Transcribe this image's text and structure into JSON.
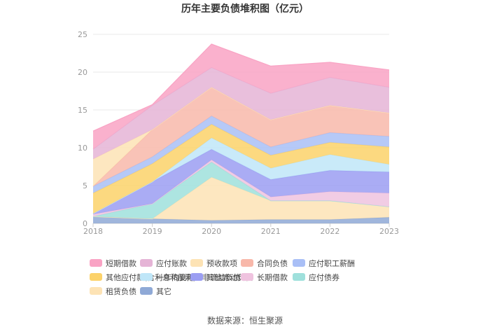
{
  "chart_data": {
    "type": "area",
    "stacked": true,
    "title": "历年主要负债堆积图（亿元）",
    "x": [
      "2018",
      "2019",
      "2020",
      "2021",
      "2022",
      "2023"
    ],
    "ylim": [
      0,
      25
    ],
    "yticks": [
      "0",
      "5",
      "10",
      "15",
      "20",
      "25"
    ],
    "grid": true,
    "legend_position": "bottom",
    "series": [
      {
        "name": "其它",
        "color": "#8fa9d6",
        "values": [
          0.9,
          0.6,
          0.4,
          0.5,
          0.5,
          0.8
        ]
      },
      {
        "name": "租赁负债",
        "color": "#fde3b5",
        "values": [
          0.0,
          0.0,
          5.7,
          2.5,
          2.5,
          1.4
        ]
      },
      {
        "name": "应付债券",
        "color": "#9fe0dc",
        "values": [
          0.0,
          2.0,
          2.0,
          0.0,
          0.0,
          0.0
        ]
      },
      {
        "name": "长期借款",
        "color": "#efc3df",
        "values": [
          0.3,
          0.0,
          0.3,
          0.5,
          1.2,
          1.8
        ]
      },
      {
        "name": "其他流动负债",
        "color": "#9b9ef2",
        "values": [
          0.1,
          2.9,
          1.4,
          2.3,
          2.8,
          2.8
        ]
      },
      {
        "name": "一年内到期的非流动负债",
        "color": "#bfe6f8",
        "values": [
          0.0,
          0.0,
          1.5,
          1.5,
          2.1,
          1.0
        ]
      },
      {
        "name": "其他应付款(含利息和股利)",
        "color": "#fcd26a",
        "values": [
          2.7,
          2.4,
          1.8,
          1.7,
          1.6,
          2.3
        ]
      },
      {
        "name": "应付职工薪酬",
        "color": "#a9bff6",
        "values": [
          0.9,
          0.9,
          1.1,
          1.1,
          1.3,
          1.4
        ]
      },
      {
        "name": "合同负债",
        "color": "#f8b8aa",
        "values": [
          0.0,
          3.6,
          3.8,
          3.6,
          3.6,
          3.1
        ]
      },
      {
        "name": "预收款项",
        "color": "#fde3b5",
        "values": [
          3.6,
          0.0,
          0.0,
          0.0,
          0.0,
          0.0
        ]
      },
      {
        "name": "应付账款",
        "color": "#e5b4d6",
        "values": [
          1.3,
          3.2,
          2.6,
          3.5,
          3.7,
          3.4
        ]
      },
      {
        "name": "短期借款",
        "color": "#f9a3c4",
        "values": [
          2.4,
          0.1,
          3.1,
          3.6,
          2.0,
          2.3
        ]
      }
    ],
    "legend_order": [
      "短期借款",
      "应付账款",
      "预收款项",
      "合同负债",
      "应付职工薪酬",
      "其他应付款(含利息和股利)",
      "一年内到期的非流动负债",
      "其他流动负债",
      "长期借款",
      "应付债券",
      "租赁负债",
      "其它"
    ],
    "source": "数据来源：恒生聚源"
  }
}
